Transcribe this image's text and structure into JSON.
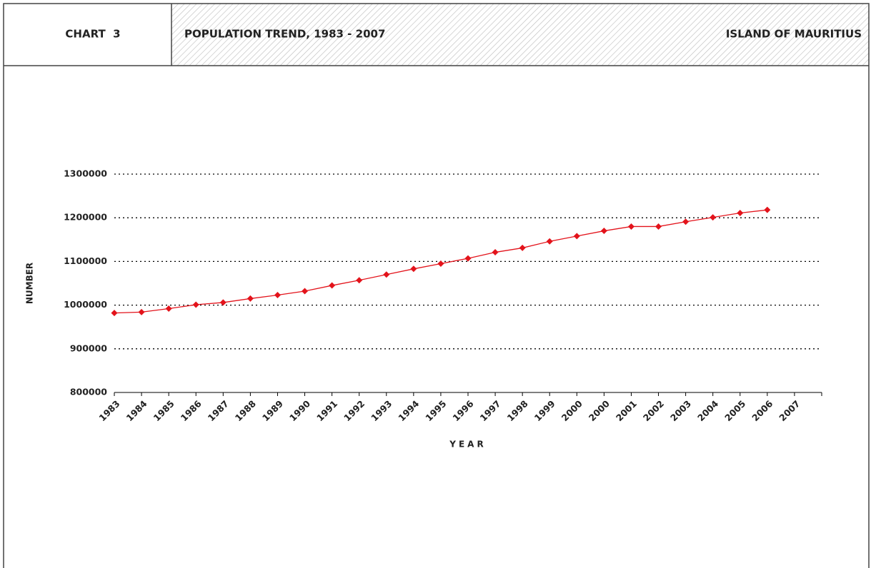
{
  "header": {
    "label": "CHART  3",
    "title": "POPULATION TREND, 1983 - 2007",
    "region": "ISLAND OF MAURITIUS"
  },
  "chart_data": {
    "type": "line",
    "ylabel": "NUMBER",
    "xlabel": "YEAR",
    "categories": [
      "1983",
      "1984",
      "1985",
      "1986",
      "1987",
      "1988",
      "1989",
      "1990",
      "1991",
      "1992",
      "1993",
      "1994",
      "1995",
      "1996",
      "1997",
      "1998",
      "1999",
      "2000",
      "2000",
      "2001",
      "2002",
      "2003",
      "2004",
      "2005",
      "2006",
      "2007"
    ],
    "series": [
      {
        "name": "Population",
        "color": "#e3131b",
        "values": [
          982000,
          984000,
          992000,
          1001000,
          1006000,
          1015000,
          1023000,
          1032000,
          1045000,
          1057000,
          1070000,
          1083000,
          1095000,
          1107000,
          1121000,
          1131000,
          1146000,
          1158000,
          1170000,
          1180000,
          1180000,
          1191000,
          1201000,
          1211000,
          1218000,
          null
        ]
      }
    ],
    "ylim": [
      800000,
      1300000
    ],
    "yticks": [
      800000,
      900000,
      1000000,
      1100000,
      1200000,
      1300000
    ],
    "grid": true
  }
}
